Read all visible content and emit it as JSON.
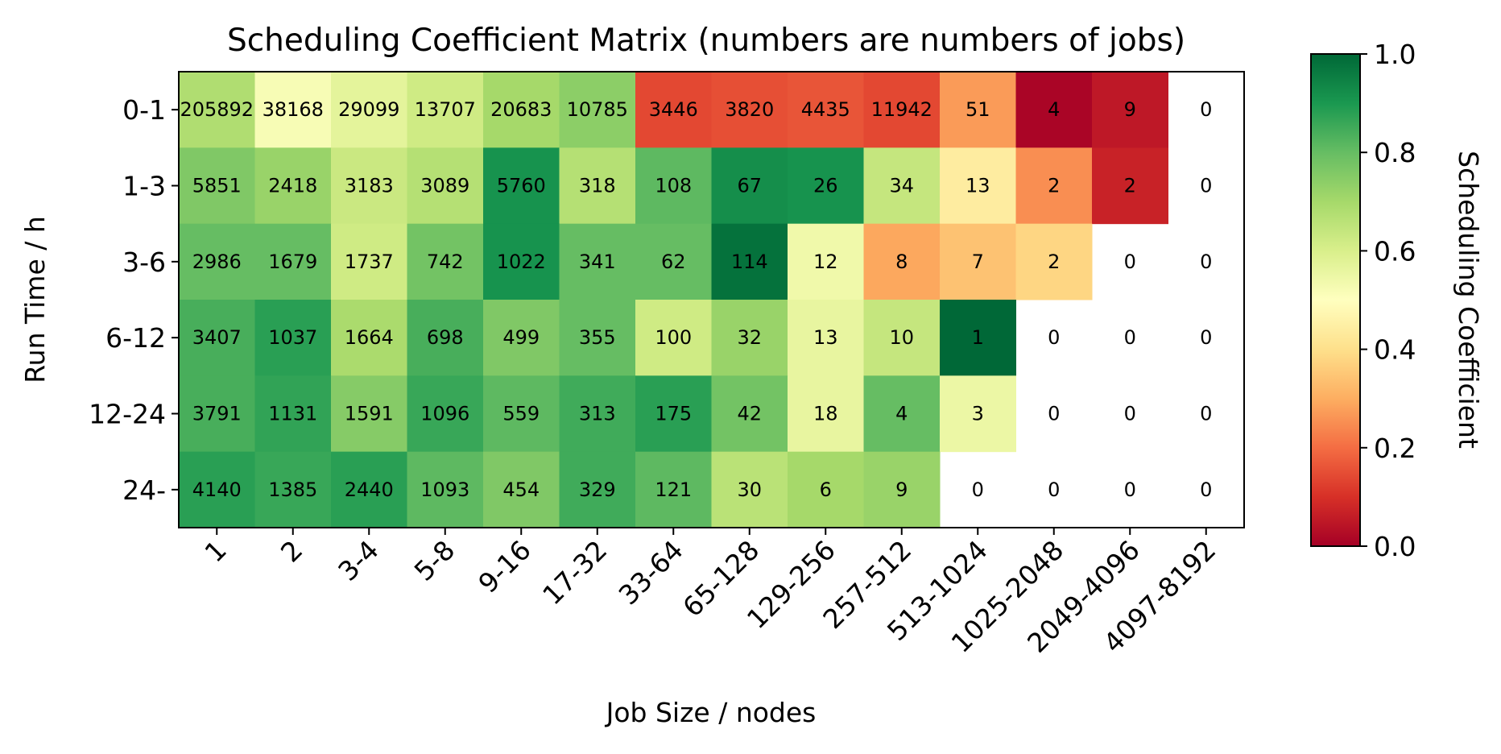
{
  "chart_data": {
    "type": "heatmap",
    "title": "Scheduling Coefficient Matrix (numbers are numbers of jobs)",
    "xlabel": "Job Size / nodes",
    "ylabel": "Run Time / h",
    "x_categories": [
      "1",
      "2",
      "3-4",
      "5-8",
      "9-16",
      "17-32",
      "33-64",
      "65-128",
      "129-256",
      "257-512",
      "513-1024",
      "1025-2048",
      "2049-4096",
      "4097-8192"
    ],
    "y_categories": [
      "0-1",
      "1-3",
      "3-6",
      "6-12",
      "12-24",
      "24-"
    ],
    "counts": [
      [
        205892,
        38168,
        29099,
        13707,
        20683,
        10785,
        3446,
        3820,
        4435,
        11942,
        51,
        4,
        9,
        0
      ],
      [
        5851,
        2418,
        3183,
        3089,
        5760,
        318,
        108,
        67,
        26,
        34,
        13,
        2,
        2,
        0
      ],
      [
        2986,
        1679,
        1737,
        742,
        1022,
        341,
        62,
        114,
        12,
        8,
        7,
        2,
        0,
        0
      ],
      [
        3407,
        1037,
        1664,
        698,
        499,
        355,
        100,
        32,
        13,
        10,
        1,
        0,
        0,
        0
      ],
      [
        3791,
        1131,
        1591,
        1096,
        559,
        313,
        175,
        42,
        18,
        4,
        3,
        0,
        0,
        0
      ],
      [
        4140,
        1385,
        2440,
        1093,
        454,
        329,
        121,
        30,
        6,
        9,
        0,
        0,
        0,
        0
      ]
    ],
    "coefficients": [
      [
        0.68,
        0.52,
        0.57,
        0.62,
        0.7,
        0.74,
        0.14,
        0.15,
        0.16,
        0.14,
        0.27,
        0.01,
        0.05,
        null
      ],
      [
        0.76,
        0.72,
        0.63,
        0.67,
        0.91,
        0.67,
        0.81,
        0.92,
        0.91,
        0.64,
        0.44,
        0.25,
        0.07,
        null
      ],
      [
        0.8,
        0.8,
        0.62,
        0.78,
        0.91,
        0.8,
        0.8,
        0.98,
        0.54,
        0.29,
        0.34,
        0.38,
        null,
        null
      ],
      [
        0.84,
        0.88,
        0.69,
        0.84,
        0.76,
        0.8,
        0.62,
        0.72,
        0.56,
        0.64,
        1.0,
        null,
        null,
        null
      ],
      [
        0.84,
        0.87,
        0.75,
        0.86,
        0.81,
        0.85,
        0.88,
        0.78,
        0.56,
        0.8,
        0.55,
        null,
        null,
        null
      ],
      [
        0.88,
        0.86,
        0.88,
        0.81,
        0.76,
        0.85,
        0.81,
        0.66,
        0.7,
        0.72,
        null,
        null,
        null,
        null
      ]
    ],
    "colorbar": {
      "label": "Scheduling Coefficient",
      "range": [
        0,
        1
      ],
      "ticks": [
        "0.0",
        "0.2",
        "0.4",
        "0.6",
        "0.8",
        "1.0"
      ],
      "colormap": "RdYlGn",
      "stops": [
        "#a50026",
        "#d73027",
        "#f46d43",
        "#fdae61",
        "#fee08b",
        "#ffffbf",
        "#d9ef8b",
        "#a6d96a",
        "#66bd63",
        "#1a9850",
        "#006837"
      ]
    },
    "grid": false
  }
}
